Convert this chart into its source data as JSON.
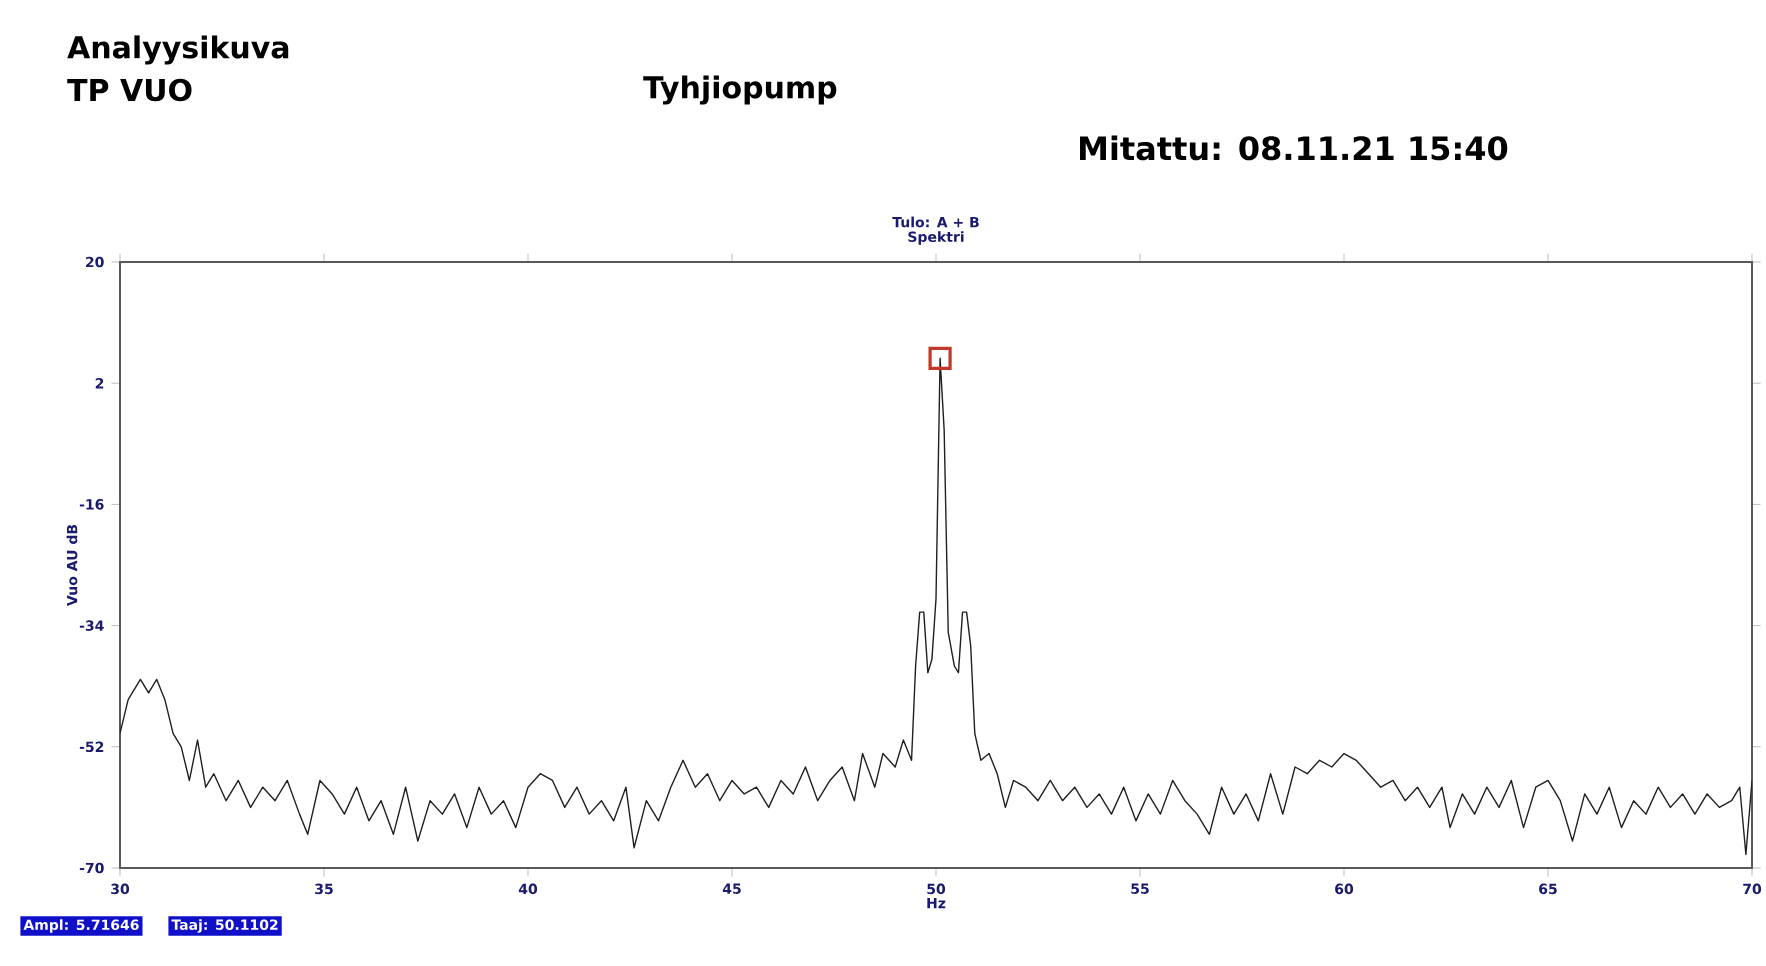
{
  "chart_data": {
    "type": "line",
    "title": "Analyysikuva",
    "subtitle": "TP VUO",
    "xlabel": "Hz",
    "ylabel": "Vuo AU dB",
    "annotations": [
      "Tyhjiopump",
      "Mitattu: 08.11.21   15:40",
      "Tulo: A  +  B",
      "Spektri",
      "Ampl: 5.71646",
      "Taaj: 50.1102"
    ],
    "xlim": [
      30,
      70
    ],
    "xticks": [
      30,
      35,
      40,
      45,
      50,
      55,
      60,
      65,
      70
    ],
    "ylim": [
      -70,
      20
    ],
    "yticks": [
      -70,
      -52,
      -34,
      -16,
      2,
      20
    ],
    "grid": false,
    "series": [
      {
        "color": "#202020",
        "x": [
          30.0,
          30.2,
          30.5,
          30.7,
          30.9,
          31.1,
          31.3,
          31.5,
          31.7,
          31.9,
          32.1,
          32.3,
          32.6,
          32.9,
          33.2,
          33.5,
          33.8,
          34.1,
          34.4,
          34.6,
          34.9,
          35.2,
          35.5,
          35.8,
          36.1,
          36.4,
          36.7,
          37.0,
          37.3,
          37.6,
          37.9,
          38.2,
          38.5,
          38.8,
          39.1,
          39.4,
          39.7,
          40.0,
          40.3,
          40.6,
          40.9,
          41.2,
          41.5,
          41.8,
          42.1,
          42.4,
          42.6,
          42.9,
          43.2,
          43.5,
          43.8,
          44.1,
          44.4,
          44.7,
          45.0,
          45.3,
          45.6,
          45.9,
          46.2,
          46.5,
          46.8,
          47.1,
          47.4,
          47.7,
          48.0,
          48.2,
          48.5,
          48.7,
          49.0,
          49.2,
          49.4,
          49.5,
          49.6,
          49.7,
          49.8,
          49.9,
          50.0,
          50.1,
          50.2,
          50.3,
          50.45,
          50.55,
          50.65,
          50.75,
          50.85,
          50.95,
          51.1,
          51.3,
          51.5,
          51.7,
          51.9,
          52.2,
          52.5,
          52.8,
          53.1,
          53.4,
          53.7,
          54.0,
          54.3,
          54.6,
          54.9,
          55.2,
          55.5,
          55.8,
          56.1,
          56.4,
          56.7,
          57.0,
          57.3,
          57.6,
          57.9,
          58.2,
          58.5,
          58.8,
          59.1,
          59.4,
          59.7,
          60.0,
          60.3,
          60.6,
          60.9,
          61.2,
          61.5,
          61.8,
          62.1,
          62.4,
          62.6,
          62.9,
          63.2,
          63.5,
          63.8,
          64.1,
          64.4,
          64.7,
          65.0,
          65.3,
          65.6,
          65.9,
          66.2,
          66.5,
          66.8,
          67.1,
          67.4,
          67.7,
          68.0,
          68.3,
          68.6,
          68.9,
          69.2,
          69.5,
          69.7,
          69.85,
          70.0
        ],
        "values": [
          -50,
          -45,
          -42,
          -44,
          -42,
          -45,
          -50,
          -52,
          -57,
          -51,
          -58,
          -56,
          -60,
          -57,
          -61,
          -58,
          -60,
          -57,
          -62,
          -65,
          -57,
          -59,
          -62,
          -58,
          -63,
          -60,
          -65,
          -58,
          -66,
          -60,
          -62,
          -59,
          -64,
          -58,
          -62,
          -60,
          -64,
          -58,
          -56,
          -57,
          -61,
          -58,
          -62,
          -60,
          -63,
          -58,
          -67,
          -60,
          -63,
          -58,
          -54,
          -58,
          -56,
          -60,
          -57,
          -59,
          -58,
          -61,
          -57,
          -59,
          -55,
          -60,
          -57,
          -55,
          -60,
          -53,
          -58,
          -53,
          -55,
          -51,
          -54,
          -40,
          -32,
          -32,
          -41,
          -39,
          -30,
          5.7,
          -5,
          -35,
          -40,
          -41,
          -32,
          -32,
          -37,
          -50,
          -54,
          -53,
          -56,
          -61,
          -57,
          -58,
          -60,
          -57,
          -60,
          -58,
          -61,
          -59,
          -62,
          -58,
          -63,
          -59,
          -62,
          -57,
          -60,
          -62,
          -65,
          -58,
          -62,
          -59,
          -63,
          -56,
          -62,
          -55,
          -56,
          -54,
          -55,
          -53,
          -54,
          -56,
          -58,
          -57,
          -60,
          -58,
          -61,
          -58,
          -64,
          -59,
          -62,
          -58,
          -61,
          -57,
          -64,
          -58,
          -57,
          -60,
          -66,
          -59,
          -62,
          -58,
          -64,
          -60,
          -62,
          -58,
          -61,
          -59,
          -62,
          -59,
          -61,
          -60,
          -58,
          -68,
          -57
        ]
      },
      {
        "type": "scatter",
        "marker": "square",
        "color": "#c0392b",
        "x": [
          50.1
        ],
        "values": [
          5.7
        ]
      }
    ]
  }
}
